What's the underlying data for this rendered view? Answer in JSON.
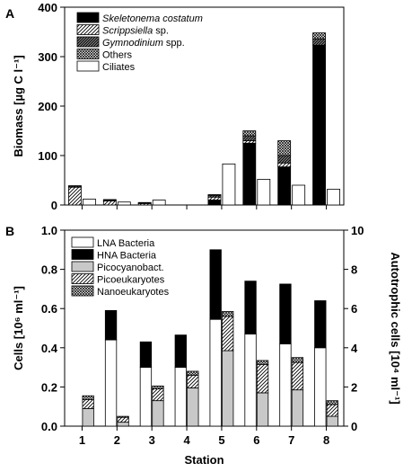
{
  "chart_data": [
    {
      "panel": "A",
      "type": "bar",
      "stacked_series": [
        {
          "name": "Skeletonema costatum",
          "name_main": "Skeletonema costatum",
          "name_suffix": "",
          "fill": "solid-black"
        },
        {
          "name": "Scrippsiella sp.",
          "name_main": "Scrippsiella",
          "name_suffix": " sp.",
          "fill": "diagonal-hatch"
        },
        {
          "name": "Gymnodinium spp.",
          "name_main": "Gymnodinium",
          "name_suffix": " spp.",
          "fill": "dense-hatch"
        },
        {
          "name": "Others",
          "name_main": "",
          "name_suffix": "Others",
          "fill": "crosshatch"
        }
      ],
      "separate_series": {
        "name": "Ciliates",
        "fill": "white"
      },
      "x": [
        1,
        2,
        3,
        4,
        5,
        6,
        7,
        8
      ],
      "stacked_values": [
        [
          0,
          0,
          0,
          0,
          10,
          125,
          77,
          323
        ],
        [
          36,
          8,
          3,
          0,
          6,
          5,
          8,
          0
        ],
        [
          2,
          2,
          1,
          0,
          3,
          10,
          15,
          13
        ],
        [
          1,
          1,
          1,
          0,
          2,
          10,
          30,
          12
        ]
      ],
      "ciliates": [
        12,
        6,
        10,
        0,
        83,
        52,
        40,
        32
      ],
      "ylabel": "Biomass [µg C l⁻¹]",
      "ylim": [
        0,
        400
      ],
      "yticks": [
        0,
        100,
        200,
        300,
        400
      ],
      "legend": "top-left"
    },
    {
      "panel": "B",
      "type": "bar",
      "left_series": [
        {
          "name": "LNA Bacteria",
          "fill": "white"
        },
        {
          "name": "HNA Bacteria",
          "fill": "solid-black"
        }
      ],
      "right_series": [
        {
          "name": "Picocyanobact.",
          "fill": "light-gray"
        },
        {
          "name": "Picoeukaryotes",
          "fill": "diagonal-hatch"
        },
        {
          "name": "Nanoeukaryotes",
          "fill": "crosshatch"
        }
      ],
      "x": [
        1,
        2,
        3,
        4,
        5,
        6,
        7,
        8
      ],
      "lna_bacteria": [
        0,
        0.44,
        0.3,
        0.3,
        0.545,
        0.47,
        0.42,
        0.4
      ],
      "hna_bacteria": [
        0,
        0.15,
        0.13,
        0.165,
        0.355,
        0.27,
        0.305,
        0.24
      ],
      "picocyanobact": [
        0.9,
        0.2,
        1.3,
        1.95,
        3.85,
        1.7,
        1.85,
        0.5
      ],
      "picoeukaryotes": [
        0.45,
        0.25,
        0.6,
        0.65,
        1.75,
        1.45,
        1.4,
        0.6
      ],
      "nanoeukaryotes": [
        0.2,
        0.05,
        0.15,
        0.2,
        0.25,
        0.2,
        0.25,
        0.2
      ],
      "ylabel_left": "Cells [10⁶ ml⁻¹]",
      "ylabel_right": "Autotrophic cells [10⁴ ml⁻¹]",
      "ylim_left": [
        0,
        1.0
      ],
      "ylim_right": [
        0,
        10
      ],
      "yticks_left": [
        "0.0",
        "0.2",
        "0.4",
        "0.6",
        "0.8",
        "1.0"
      ],
      "yticks_right": [
        "0",
        "2",
        "4",
        "6",
        "8",
        "10"
      ],
      "xlabel": "Station",
      "legend": "top-left"
    }
  ]
}
